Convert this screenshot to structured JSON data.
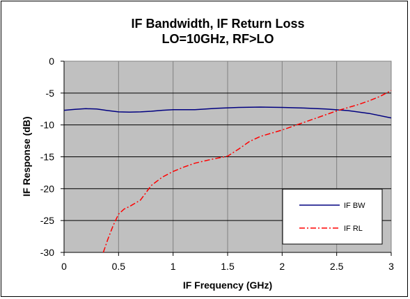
{
  "chart_data": {
    "type": "line",
    "title": [
      "IF Bandwidth, IF Return Loss",
      "LO=10GHz, RF>LO"
    ],
    "xlabel": "IF Frequency  (GHz)",
    "ylabel": "IF Response (dB)",
    "xlim": [
      0,
      3
    ],
    "ylim": [
      -30,
      0
    ],
    "xticks": [
      0,
      0.5,
      1,
      1.5,
      2,
      2.5,
      3
    ],
    "xtick_labels": [
      "0",
      "0.5",
      "1",
      "1.5",
      "2",
      "2.5",
      "3"
    ],
    "yticks": [
      0,
      -5,
      -10,
      -15,
      -20,
      -25,
      -30
    ],
    "ytick_labels": [
      "0",
      "-5",
      "-10",
      "-15",
      "-20",
      "-25",
      "-30"
    ],
    "grid": true,
    "plot_background": "#c0c0c0",
    "legend_position": "bottom-right",
    "series": [
      {
        "name": "IF BW",
        "color": "#000080",
        "style": "solid",
        "x": [
          0,
          0.1,
          0.2,
          0.3,
          0.4,
          0.5,
          0.6,
          0.7,
          0.8,
          0.9,
          1.0,
          1.2,
          1.4,
          1.6,
          1.8,
          2.0,
          2.2,
          2.4,
          2.6,
          2.8,
          3.0
        ],
        "y": [
          -7.7,
          -7.55,
          -7.45,
          -7.5,
          -7.75,
          -7.95,
          -8.0,
          -7.95,
          -7.85,
          -7.7,
          -7.6,
          -7.6,
          -7.4,
          -7.25,
          -7.2,
          -7.25,
          -7.35,
          -7.5,
          -7.75,
          -8.2,
          -8.9
        ]
      },
      {
        "name": "IF RL",
        "color": "#ff0000",
        "style": "dash-dot",
        "x": [
          0.36,
          0.4,
          0.45,
          0.5,
          0.55,
          0.6,
          0.7,
          0.8,
          0.9,
          1.0,
          1.1,
          1.2,
          1.35,
          1.5,
          1.6,
          1.7,
          1.8,
          1.9,
          2.0,
          2.1,
          2.2,
          2.3,
          2.4,
          2.5,
          2.6,
          2.7,
          2.8,
          2.9,
          3.0
        ],
        "y": [
          -30,
          -28.0,
          -25.8,
          -24.0,
          -23.2,
          -22.8,
          -21.8,
          -19.5,
          -18.2,
          -17.3,
          -16.6,
          -16.0,
          -15.4,
          -14.9,
          -13.8,
          -12.6,
          -11.8,
          -11.3,
          -10.8,
          -10.2,
          -9.6,
          -9.0,
          -8.4,
          -7.8,
          -7.3,
          -6.8,
          -6.2,
          -5.5,
          -4.6
        ]
      }
    ]
  }
}
